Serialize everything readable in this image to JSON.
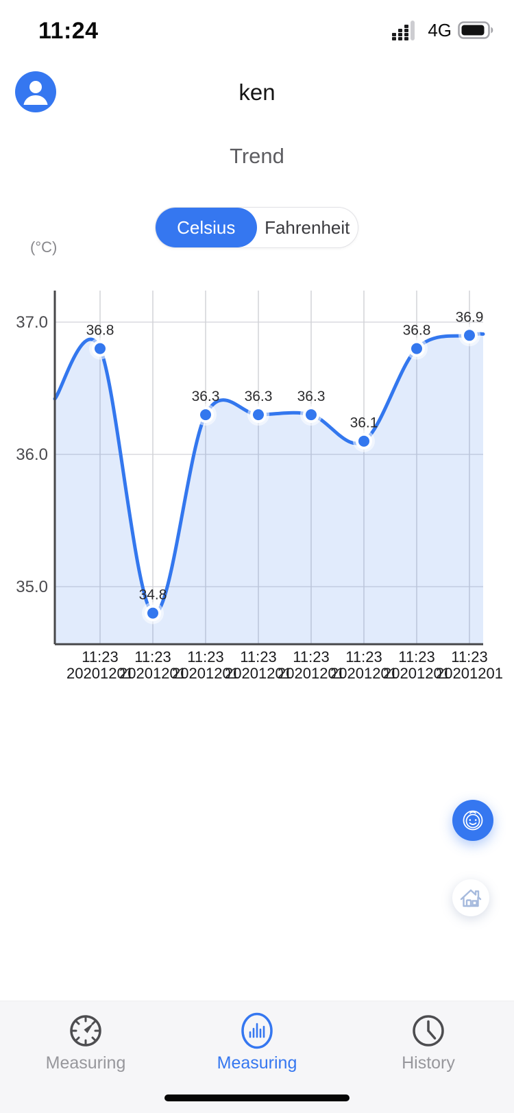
{
  "colors": {
    "accent_blue": "#3577F0",
    "line_blue": "#3377EE",
    "area_fill": "rgba(51,119,238,0.15)",
    "grid_vertical": "#d2d3d7",
    "grid_horizontal": "#e3e3e7",
    "axis": "#474749",
    "tab_inactive_label": "#97979c",
    "tab_inactive_icon": "#4d4d50"
  },
  "status_bar": {
    "time": "11:24",
    "network_label": "4G",
    "signal_icon": "cellular-signal-dots",
    "battery_icon": "battery-full"
  },
  "header": {
    "title": "ken",
    "avatar_icon": "person-icon"
  },
  "section": {
    "title": "Trend"
  },
  "unit_toggle": {
    "options": [
      {
        "label": "Celsius",
        "selected": true
      },
      {
        "label": "Fahrenheit",
        "selected": false
      }
    ]
  },
  "chart_data": {
    "type": "area",
    "unit_label": "(°C)",
    "ylabel": "(°C)",
    "y_ticks": [
      "37.0",
      "36.0",
      "35.0"
    ],
    "ylim": [
      34.57,
      37.26
    ],
    "grid": true,
    "legend": "none",
    "categories_time": [
      "11:23",
      "11:23",
      "11:23",
      "11:23",
      "11:23",
      "11:23",
      "11:23",
      "11:23"
    ],
    "categories_date": [
      "20201201",
      "20201201",
      "20201201",
      "20201201",
      "20201201",
      "20201201",
      "20201201",
      "20201201"
    ],
    "values": [
      36.8,
      34.8,
      36.3,
      36.3,
      36.3,
      36.1,
      36.8,
      36.9
    ],
    "point_labels": [
      "36.8",
      "34.8",
      "36.3",
      "36.3",
      "36.3",
      "36.1",
      "36.8",
      "36.9"
    ],
    "edge_start_value": 36.42,
    "edge_end_value": 36.91,
    "line_color": "#3377EE",
    "fill_color": "rgba(51,119,238,0.15)"
  },
  "fab_buttons": [
    {
      "icon": "baby-face-icon"
    },
    {
      "icon": "home-icon"
    }
  ],
  "tab_bar": {
    "items": [
      {
        "label": "Measuring",
        "icon": "gauge-icon",
        "active": false
      },
      {
        "label": "Measuring",
        "icon": "bar-chart-icon",
        "active": true
      },
      {
        "label": "History",
        "icon": "clock-icon",
        "active": false
      }
    ]
  }
}
